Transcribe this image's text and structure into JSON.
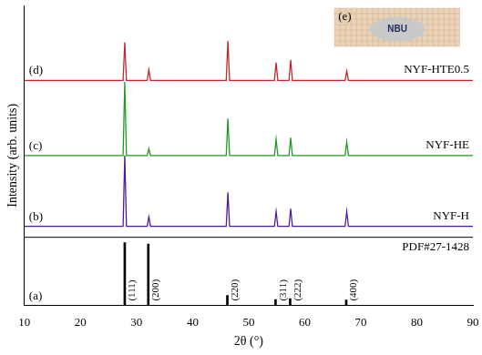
{
  "chart_data": {
    "type": "line",
    "x_label": "2θ (°)",
    "y_label": "Intensity (arb. units)",
    "xlim": [
      10,
      90
    ],
    "xticks": [
      10,
      20,
      30,
      40,
      50,
      60,
      70,
      80,
      90
    ],
    "ylim": [
      0,
      11
    ],
    "tick_labels": "x",
    "grid": false,
    "series": [
      {
        "name": "PDF#27-1428",
        "panel": "(a)",
        "type": "bar",
        "color": "#000000",
        "x": [
          27.9,
          32.1,
          46.2,
          54.8,
          57.4,
          67.4
        ],
        "values": [
          2.3,
          2.25,
          0.37,
          0.22,
          0.25,
          0.2
        ],
        "peak_labels": [
          "(111)",
          "(200)",
          "(220)",
          "(311)",
          "(222)",
          "(400)"
        ]
      },
      {
        "name": "NYF-H",
        "panel": "(b)",
        "color": "#4b1c99",
        "x": [
          10,
          27.6,
          27.9,
          28.2,
          31.9,
          32.2,
          32.5,
          46.0,
          46.3,
          46.6,
          54.6,
          54.9,
          55.2,
          57.2,
          57.5,
          57.8,
          67.2,
          67.5,
          67.8,
          90
        ],
        "values": [
          2.9,
          2.9,
          5.5,
          2.9,
          2.9,
          3.25,
          2.9,
          2.9,
          4.15,
          2.9,
          2.9,
          3.45,
          2.9,
          2.9,
          3.55,
          2.9,
          2.9,
          3.45,
          2.9,
          2.9
        ]
      },
      {
        "name": "NYF-HE",
        "panel": "(c)",
        "color": "#229922",
        "x": [
          10,
          27.6,
          27.9,
          28.2,
          31.9,
          32.2,
          32.5,
          46.0,
          46.3,
          46.6,
          54.6,
          54.9,
          55.2,
          57.2,
          57.5,
          57.8,
          67.2,
          67.5,
          67.8,
          90
        ],
        "values": [
          5.5,
          5.5,
          8.2,
          5.5,
          5.5,
          5.75,
          5.5,
          5.5,
          6.85,
          5.5,
          5.5,
          6.1,
          5.5,
          5.5,
          6.15,
          5.5,
          5.5,
          6.0,
          5.5,
          5.5
        ]
      },
      {
        "name": "NYF-HTE0.5",
        "panel": "(d)",
        "color": "#c0282b",
        "x": [
          10,
          27.6,
          27.9,
          28.2,
          31.9,
          32.2,
          32.5,
          46.0,
          46.3,
          46.6,
          54.6,
          54.9,
          55.2,
          57.2,
          57.5,
          57.8,
          67.2,
          67.5,
          67.8,
          90
        ],
        "values": [
          8.25,
          8.25,
          9.65,
          8.25,
          8.25,
          8.65,
          8.25,
          8.25,
          9.7,
          8.25,
          8.25,
          8.9,
          8.25,
          8.25,
          9.0,
          8.25,
          8.25,
          8.6,
          8.25,
          8.25
        ]
      }
    ],
    "inset": {
      "label": "(e)",
      "text": "NBU"
    }
  }
}
